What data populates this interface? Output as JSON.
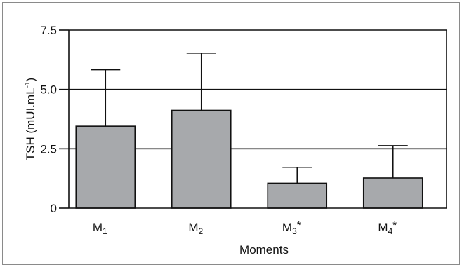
{
  "chart_data": {
    "type": "bar",
    "categories": [
      "M1",
      "M2",
      "M3*",
      "M4*"
    ],
    "category_labels": [
      {
        "base": "M",
        "sub": "1",
        "sup": ""
      },
      {
        "base": "M",
        "sub": "2",
        "sup": ""
      },
      {
        "base": "M",
        "sub": "3",
        "sup": "*"
      },
      {
        "base": "M",
        "sub": "4",
        "sup": "*"
      }
    ],
    "values": [
      3.45,
      4.12,
      1.05,
      1.27
    ],
    "error_upper": [
      5.83,
      6.53,
      1.72,
      2.63
    ],
    "title": "",
    "xlabel": "Moments",
    "ylabel": "TSH (mUI.mL",
    "ylabel_sup": "-1",
    "ylabel_close": ")",
    "ylim": [
      0,
      7.5
    ],
    "yticks": [
      0,
      2.5,
      5.0,
      7.5
    ],
    "ytick_labels": [
      "0",
      "2.5",
      "5.0",
      "7.5"
    ],
    "grid": "horizontal at major ticks",
    "legend": "none",
    "bar_color": "#a7a9ac",
    "edge_color": "#111111"
  }
}
